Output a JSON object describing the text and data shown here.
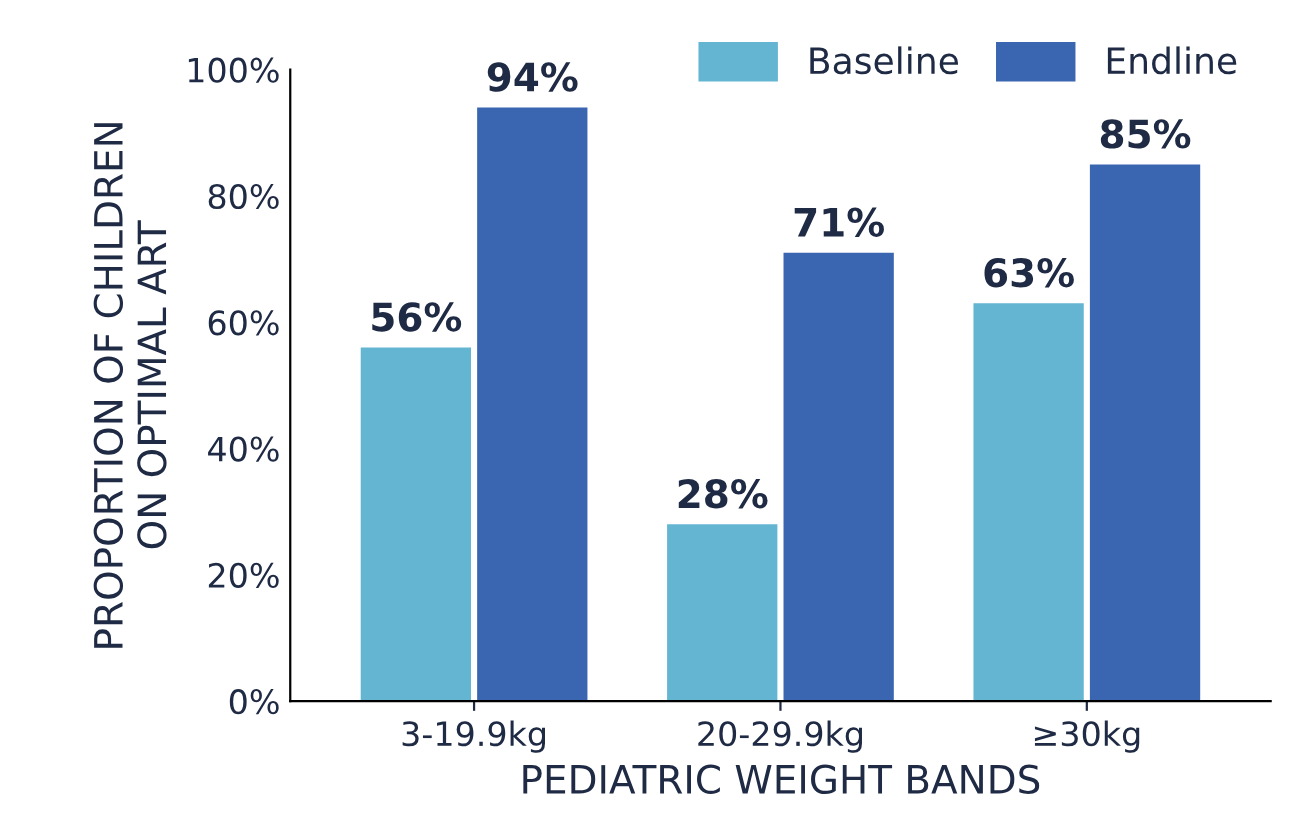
{
  "chart_data": {
    "type": "bar",
    "xlabel": "PEDIATRIC WEIGHT BANDS",
    "ylabel": "PROPORTION OF CHILDREN\nON OPTIMAL ART",
    "categories": [
      "3-19.9kg",
      "20-29.9kg",
      "≥30kg"
    ],
    "series": [
      {
        "name": "Baseline",
        "color": "#63b5d1",
        "values": [
          56,
          28,
          63
        ],
        "value_labels": [
          "56%",
          "28%",
          "63%"
        ]
      },
      {
        "name": "Endline",
        "color": "#3a65b0",
        "values": [
          94,
          71,
          85
        ],
        "value_labels": [
          "94%",
          "71%",
          "85%"
        ]
      }
    ],
    "ylim": [
      0,
      100
    ],
    "yticks": [
      {
        "value": 0,
        "label": "0%"
      },
      {
        "value": 20,
        "label": "20%"
      },
      {
        "value": 40,
        "label": "40%"
      },
      {
        "value": 60,
        "label": "60%"
      },
      {
        "value": 80,
        "label": "80%"
      },
      {
        "value": 100,
        "label": "100%"
      }
    ],
    "grid": false,
    "legend": "top right"
  }
}
